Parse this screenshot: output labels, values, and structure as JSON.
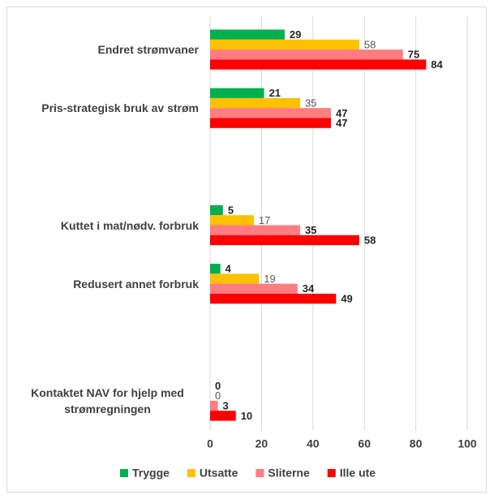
{
  "chart_data": {
    "type": "hbar",
    "categories": [
      "Endret strømvaner",
      "Pris-strategisk bruk av strøm",
      null,
      "Kuttet i mat/nødv. forbruk",
      "Redusert annet forbruk",
      null,
      "Kontaktet NAV for hjelp med strømregningen"
    ],
    "series": [
      {
        "name": "Trygge",
        "color": "#00b050",
        "values": [
          29,
          21,
          null,
          5,
          4,
          null,
          0
        ]
      },
      {
        "name": "Utsatte",
        "color": "#ffc000",
        "values": [
          58,
          35,
          null,
          17,
          19,
          null,
          0
        ]
      },
      {
        "name": "Sliterne",
        "color": "#ff7c80",
        "values": [
          75,
          47,
          null,
          35,
          34,
          null,
          3
        ]
      },
      {
        "name": "Ille ute",
        "color": "#ff0000",
        "values": [
          84,
          47,
          null,
          58,
          49,
          null,
          10
        ]
      }
    ],
    "xlim": [
      0,
      100
    ],
    "xticks": [
      0,
      20,
      40,
      60,
      80,
      100
    ],
    "grid": true,
    "legend": "bottom"
  }
}
